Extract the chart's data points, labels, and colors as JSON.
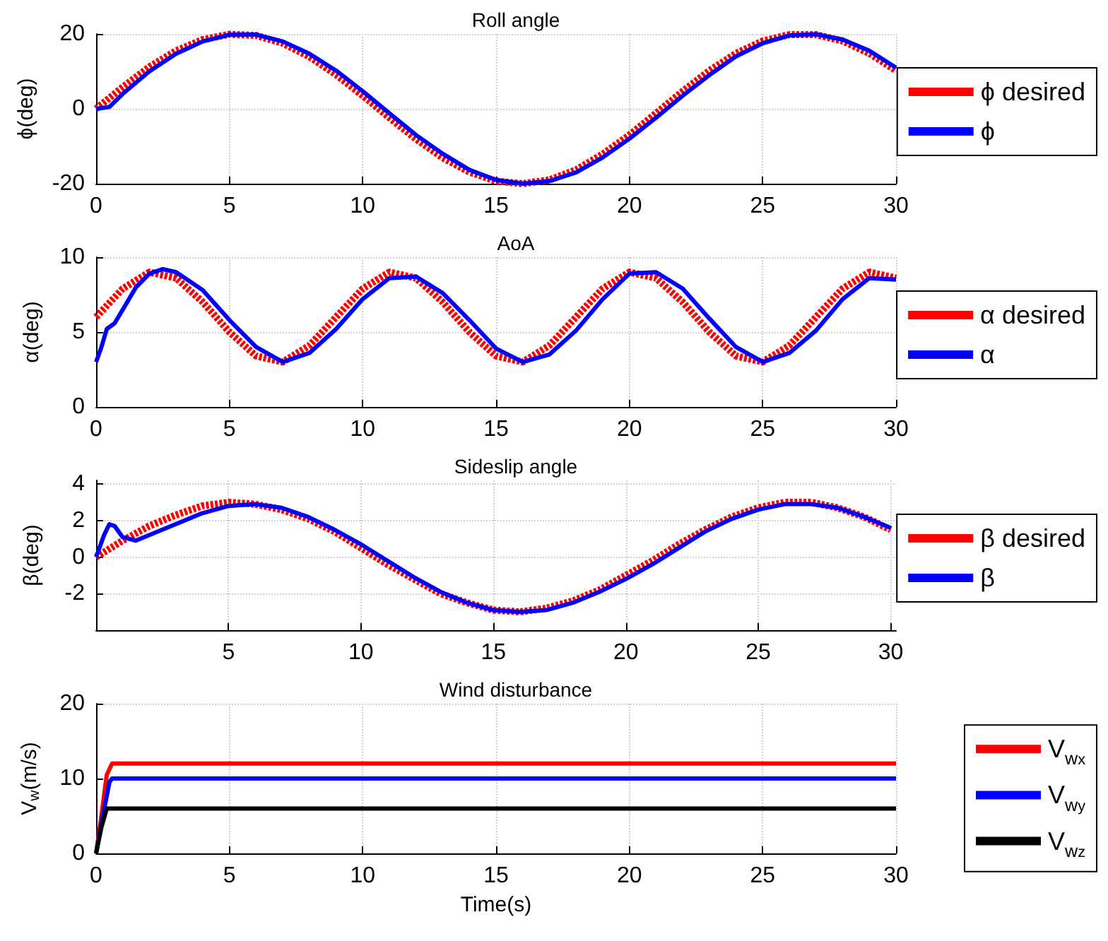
{
  "chart_data": [
    {
      "type": "line",
      "title": "Roll angle",
      "ylabel": "ϕ(deg)",
      "xlim": [
        0,
        30
      ],
      "xticks": [
        0,
        5,
        10,
        15,
        20,
        25,
        30
      ],
      "ylim": [
        -20,
        20
      ],
      "yticks": [
        -20,
        0,
        20
      ],
      "grid": true,
      "legend": "right",
      "marker": "none",
      "series": [
        {
          "name": "ϕ desired",
          "color": "#ff0000",
          "line_style": "dotted",
          "x": [
            0,
            1,
            2,
            3,
            4,
            5,
            6,
            7,
            8,
            9,
            10,
            11,
            12,
            13,
            14,
            15,
            16,
            17,
            18,
            19,
            20,
            21,
            22,
            23,
            24,
            25,
            26,
            27,
            28,
            29,
            30
          ],
          "values": [
            0,
            5.8,
            11.2,
            15.5,
            18.5,
            19.9,
            19.6,
            17.5,
            13.9,
            9.1,
            3.5,
            -2.4,
            -8.1,
            -13.1,
            -16.9,
            -19.3,
            -20,
            -19,
            -16.3,
            -12.1,
            -7,
            -1.2,
            4.7,
            10.2,
            14.8,
            18.1,
            19.8,
            19.8,
            18.1,
            14.8,
            10.2
          ]
        },
        {
          "name": "ϕ",
          "color": "#0000ff",
          "line_style": "solid",
          "x": [
            0,
            0.5,
            1,
            2,
            3,
            4,
            5,
            6,
            7,
            8,
            9,
            10,
            11,
            12,
            13,
            14,
            15,
            16,
            17,
            18,
            19,
            20,
            21,
            22,
            23,
            24,
            25,
            26,
            27,
            28,
            29,
            30
          ],
          "values": [
            0,
            0.5,
            4,
            10,
            14.7,
            18,
            19.8,
            19.8,
            18,
            14.7,
            10.2,
            4.7,
            -1.2,
            -7,
            -12,
            -16.3,
            -19,
            -20,
            -19.3,
            -17,
            -13,
            -8,
            -2.4,
            3.5,
            9,
            14,
            17.5,
            19.6,
            19.9,
            18.5,
            15.5,
            11
          ]
        }
      ]
    },
    {
      "type": "line",
      "title": "AoA",
      "ylabel": "α(deg)",
      "xlim": [
        0,
        30
      ],
      "xticks": [
        0,
        5,
        10,
        15,
        20,
        25,
        30
      ],
      "ylim": [
        0,
        10
      ],
      "yticks": [
        0,
        5,
        10
      ],
      "grid": true,
      "legend": "right",
      "marker": "none",
      "series": [
        {
          "name": "α desired",
          "color": "#ff0000",
          "line_style": "dotted",
          "x": [
            0,
            1,
            2,
            3,
            4,
            5,
            6,
            7,
            8,
            9,
            10,
            11,
            12,
            13,
            14,
            15,
            16,
            17,
            18,
            19,
            20,
            21,
            22,
            23,
            24,
            25,
            26,
            27,
            28,
            29,
            30
          ],
          "values": [
            6,
            7.9,
            9,
            8.6,
            7,
            5,
            3.4,
            3,
            4.1,
            6,
            7.9,
            9,
            8.6,
            7,
            5,
            3.4,
            3,
            4.1,
            6,
            7.9,
            9,
            8.6,
            7,
            5,
            3.4,
            3,
            4.1,
            6,
            7.9,
            9,
            8.6
          ]
        },
        {
          "name": "α",
          "color": "#0000ff",
          "line_style": "solid",
          "x": [
            0,
            0.2,
            0.4,
            0.7,
            1,
            1.5,
            2,
            2.5,
            3,
            4,
            5,
            6,
            7,
            8,
            9,
            10,
            11,
            12,
            13,
            14,
            15,
            16,
            17,
            18,
            19,
            20,
            21,
            22,
            23,
            24,
            25,
            26,
            27,
            28,
            29,
            30
          ],
          "values": [
            3,
            4,
            5.2,
            5.6,
            6.5,
            8,
            8.9,
            9.2,
            9,
            7.8,
            5.8,
            4,
            3,
            3.6,
            5.2,
            7.2,
            8.6,
            8.7,
            7.6,
            5.8,
            3.9,
            3,
            3.5,
            5.1,
            7.2,
            8.9,
            9,
            7.9,
            5.9,
            4,
            3,
            3.6,
            5.1,
            7.2,
            8.6,
            8.5
          ]
        }
      ]
    },
    {
      "type": "line",
      "title": "Sideslip angle",
      "ylabel": "β(deg)",
      "xlim": [
        0,
        30.2
      ],
      "xticks": [
        5,
        10,
        15,
        20,
        25,
        30
      ],
      "ylim": [
        -4,
        4.2
      ],
      "yticks": [
        -2,
        0,
        2,
        4
      ],
      "grid": true,
      "legend": "right",
      "marker": "none",
      "series": [
        {
          "name": "β desired",
          "color": "#ff0000",
          "line_style": "dotted",
          "x": [
            0,
            1,
            2,
            3,
            4,
            5,
            6,
            7,
            8,
            9,
            10,
            11,
            12,
            13,
            14,
            15,
            16,
            17,
            18,
            19,
            20,
            21,
            22,
            23,
            24,
            25,
            26,
            27,
            28,
            29,
            30
          ],
          "values": [
            0,
            0.9,
            1.7,
            2.3,
            2.8,
            3,
            2.9,
            2.6,
            2.1,
            1.4,
            0.5,
            -0.4,
            -1.2,
            -2,
            -2.5,
            -2.9,
            -3,
            -2.8,
            -2.4,
            -1.8,
            -1,
            -0.2,
            0.7,
            1.5,
            2.2,
            2.7,
            3,
            3,
            2.7,
            2.2,
            1.5
          ]
        },
        {
          "name": "β",
          "color": "#0000ff",
          "line_style": "solid",
          "x": [
            0,
            0.3,
            0.5,
            0.7,
            1,
            1.5,
            2,
            3,
            4,
            5,
            6,
            7,
            8,
            9,
            10,
            11,
            12,
            13,
            14,
            15,
            16,
            17,
            18,
            19,
            20,
            21,
            22,
            23,
            24,
            25,
            26,
            27,
            28,
            29,
            30
          ],
          "values": [
            0,
            1.2,
            1.8,
            1.7,
            1.1,
            0.9,
            1.2,
            1.8,
            2.4,
            2.8,
            2.9,
            2.7,
            2.2,
            1.5,
            0.7,
            -0.2,
            -1.1,
            -1.9,
            -2.5,
            -2.9,
            -3,
            -2.9,
            -2.5,
            -1.9,
            -1.2,
            -0.4,
            0.5,
            1.4,
            2.1,
            2.6,
            2.9,
            2.9,
            2.7,
            2.2,
            1.6
          ]
        }
      ]
    },
    {
      "type": "line",
      "title": "Wind disturbance",
      "xlabel": "Time(s)",
      "ylabel": "V$_{w}$(m/s)",
      "xlim": [
        0,
        30
      ],
      "xticks": [
        0,
        5,
        10,
        15,
        20,
        25,
        30
      ],
      "ylim": [
        0,
        20
      ],
      "yticks": [
        0,
        10,
        20
      ],
      "grid": true,
      "legend": "right",
      "marker": "none",
      "series": [
        {
          "name": "V$_{w}$$_{x}$",
          "color": "#ff0000",
          "line_style": "solid",
          "x": [
            0,
            0.2,
            0.4,
            0.6,
            30
          ],
          "values": [
            0,
            5,
            10.5,
            12,
            12
          ]
        },
        {
          "name": "V$_{w}$$_{y}$",
          "color": "#0000ff",
          "line_style": "solid",
          "x": [
            0,
            0.2,
            0.5,
            0.6,
            30
          ],
          "values": [
            0,
            4,
            9.5,
            10,
            10
          ]
        },
        {
          "name": "V$_{w}$$_{z}$",
          "color": "#000000",
          "line_style": "solid",
          "x": [
            0,
            0.2,
            0.4,
            30
          ],
          "values": [
            0,
            3.5,
            6,
            6
          ]
        }
      ]
    }
  ]
}
